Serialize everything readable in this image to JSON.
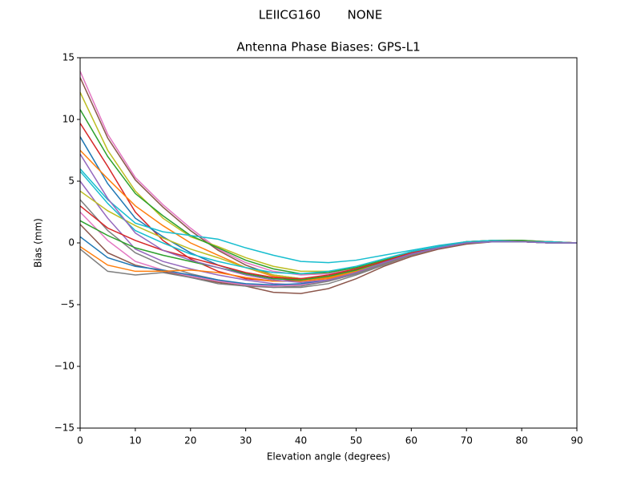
{
  "chart_data": {
    "type": "line",
    "suptitle": "LEIICG160       NONE",
    "title": "Antenna Phase Biases: GPS-L1",
    "x_label": "Elevation angle (degrees)",
    "y_label": "Bias (mm)",
    "x": [
      0,
      5,
      10,
      15,
      20,
      25,
      30,
      35,
      40,
      45,
      50,
      55,
      60,
      65,
      70,
      75,
      80,
      85,
      90
    ],
    "xlim": [
      0,
      90
    ],
    "xticks": [
      0,
      10,
      20,
      30,
      40,
      50,
      60,
      70,
      80,
      90
    ],
    "ylim": [
      -15,
      15
    ],
    "yticks": [
      {
        "value": -15,
        "label": "−15"
      },
      {
        "value": -10,
        "label": "−10"
      },
      {
        "value": -5,
        "label": "−5"
      },
      0,
      5,
      10,
      15
    ],
    "series": [
      {
        "color": "#e377c2",
        "values": [
          13.9,
          8.8,
          5.3,
          3.1,
          1.2,
          -0.5,
          -1.6,
          -2.3,
          -2.6,
          -2.5,
          -2.1,
          -1.5,
          -0.9,
          -0.3,
          0.1,
          0.2,
          0.1,
          0.1,
          0
        ]
      },
      {
        "color": "#8c564b",
        "values": [
          13.4,
          8.5,
          5.1,
          2.9,
          1.0,
          -0.6,
          -1.8,
          -2.6,
          -2.9,
          -2.7,
          -2.2,
          -1.5,
          -0.9,
          -0.3,
          0.1,
          0.2,
          0.2,
          0.1,
          0
        ]
      },
      {
        "color": "#bcbd22",
        "values": [
          12.2,
          7.5,
          4.2,
          2.0,
          0.5,
          -0.3,
          -1.2,
          -1.9,
          -2.3,
          -2.3,
          -2.0,
          -1.4,
          -0.8,
          -0.3,
          0.1,
          0.2,
          0.1,
          0.1,
          0
        ]
      },
      {
        "color": "#2ca02c",
        "values": [
          10.8,
          7.0,
          4.0,
          2.2,
          0.6,
          -0.4,
          -1.4,
          -2.1,
          -2.5,
          -2.4,
          -2.0,
          -1.4,
          -0.8,
          -0.3,
          0.1,
          0.2,
          0.2,
          0.1,
          0
        ]
      },
      {
        "color": "#d62728",
        "values": [
          9.7,
          6.2,
          2.5,
          0.2,
          -1.3,
          -2.3,
          -2.9,
          -3.1,
          -3.0,
          -2.7,
          -2.2,
          -1.5,
          -0.9,
          -0.4,
          0,
          0.1,
          0.1,
          0.1,
          0
        ]
      },
      {
        "color": "#1f77b4",
        "values": [
          8.6,
          4.8,
          2.0,
          0.5,
          -0.8,
          -1.8,
          -2.5,
          -2.9,
          -3.0,
          -2.8,
          -2.3,
          -1.6,
          -0.9,
          -0.4,
          0,
          0.1,
          0.1,
          0,
          0
        ]
      },
      {
        "color": "#ff7f0e",
        "values": [
          7.5,
          5.2,
          3.0,
          1.4,
          0.0,
          -1.0,
          -2.0,
          -2.7,
          -3.0,
          -2.8,
          -2.3,
          -1.6,
          -0.9,
          -0.3,
          0,
          0.2,
          0.1,
          0.1,
          0
        ]
      },
      {
        "color": "#17becf",
        "values": [
          6.0,
          3.5,
          1.6,
          0.9,
          0.6,
          0.3,
          -0.4,
          -1.0,
          -1.5,
          -1.6,
          -1.4,
          -1.0,
          -0.6,
          -0.2,
          0.1,
          0.2,
          0.1,
          0.1,
          0
        ]
      },
      {
        "color": "#9467bd",
        "values": [
          5.0,
          2.0,
          -0.5,
          -1.5,
          -2.1,
          -2.6,
          -3.0,
          -3.3,
          -3.4,
          -3.1,
          -2.5,
          -1.7,
          -1.0,
          -0.4,
          0,
          0.1,
          0.1,
          0,
          0
        ]
      },
      {
        "color": "#7f7f7f",
        "values": [
          3.5,
          1.0,
          -0.8,
          -1.8,
          -2.5,
          -3.0,
          -3.4,
          -3.6,
          -3.6,
          -3.3,
          -2.6,
          -1.8,
          -1.0,
          -0.4,
          0,
          0.1,
          0.1,
          0,
          0
        ]
      },
      {
        "color": "#e377c2",
        "values": [
          2.5,
          0.2,
          -1.5,
          -2.2,
          -2.7,
          -3.1,
          -3.4,
          -3.5,
          -3.4,
          -3.0,
          -2.4,
          -1.7,
          -1.0,
          -0.4,
          0,
          0.1,
          0.1,
          0,
          0
        ]
      },
      {
        "color": "#8c564b",
        "values": [
          1.5,
          -0.8,
          -1.8,
          -2.3,
          -2.8,
          -3.2,
          -3.5,
          -4.0,
          -4.1,
          -3.7,
          -2.9,
          -1.9,
          -1.1,
          -0.5,
          -0.1,
          0.1,
          0.1,
          0,
          0
        ]
      },
      {
        "color": "#bcbd22",
        "values": [
          4.2,
          2.6,
          1.4,
          0.4,
          -0.5,
          -1.2,
          -2.0,
          -2.6,
          -2.9,
          -2.7,
          -2.2,
          -1.6,
          -0.9,
          -0.4,
          0,
          0.1,
          0.1,
          0,
          0
        ]
      },
      {
        "color": "#2ca02c",
        "values": [
          1.8,
          0.6,
          -0.4,
          -1.0,
          -1.5,
          -2.0,
          -2.5,
          -2.9,
          -3.0,
          -2.7,
          -2.2,
          -1.5,
          -0.9,
          -0.4,
          0,
          0.1,
          0.1,
          0,
          0
        ]
      },
      {
        "color": "#d62728",
        "values": [
          3.0,
          1.2,
          0.2,
          -0.6,
          -1.2,
          -1.8,
          -2.4,
          -2.8,
          -2.9,
          -2.6,
          -2.1,
          -1.5,
          -0.8,
          -0.3,
          0,
          0.1,
          0.1,
          0,
          0
        ]
      },
      {
        "color": "#1f77b4",
        "values": [
          0.5,
          -1.2,
          -1.9,
          -2.2,
          -2.6,
          -3.0,
          -3.3,
          -3.4,
          -3.3,
          -3.0,
          -2.4,
          -1.6,
          -0.9,
          -0.4,
          0,
          0.1,
          0.1,
          0,
          0
        ]
      },
      {
        "color": "#ff7f0e",
        "values": [
          -0.3,
          -1.8,
          -2.3,
          -2.3,
          -2.2,
          -2.4,
          -2.8,
          -3.1,
          -3.1,
          -2.9,
          -2.4,
          -1.7,
          -1.0,
          -0.4,
          0,
          0.1,
          0.1,
          0,
          0
        ]
      },
      {
        "color": "#7f7f7f",
        "values": [
          -0.5,
          -2.3,
          -2.6,
          -2.4,
          -2.8,
          -3.3,
          -3.5,
          -3.6,
          -3.5,
          -3.1,
          -2.5,
          -1.7,
          -1.0,
          -0.4,
          0,
          0.1,
          0.1,
          0,
          0
        ]
      },
      {
        "color": "#17becf",
        "values": [
          5.8,
          3.2,
          1.0,
          0.0,
          -0.9,
          -1.5,
          -2.0,
          -2.4,
          -2.5,
          -2.3,
          -1.9,
          -1.3,
          -0.7,
          -0.3,
          0,
          0.1,
          0.1,
          0,
          0
        ]
      },
      {
        "color": "#9467bd",
        "values": [
          7.2,
          3.6,
          0.8,
          -0.6,
          -1.4,
          -2.0,
          -2.6,
          -3.0,
          -3.2,
          -3.0,
          -2.4,
          -1.6,
          -0.9,
          -0.4,
          0,
          0.1,
          0.1,
          0,
          0
        ]
      }
    ]
  }
}
